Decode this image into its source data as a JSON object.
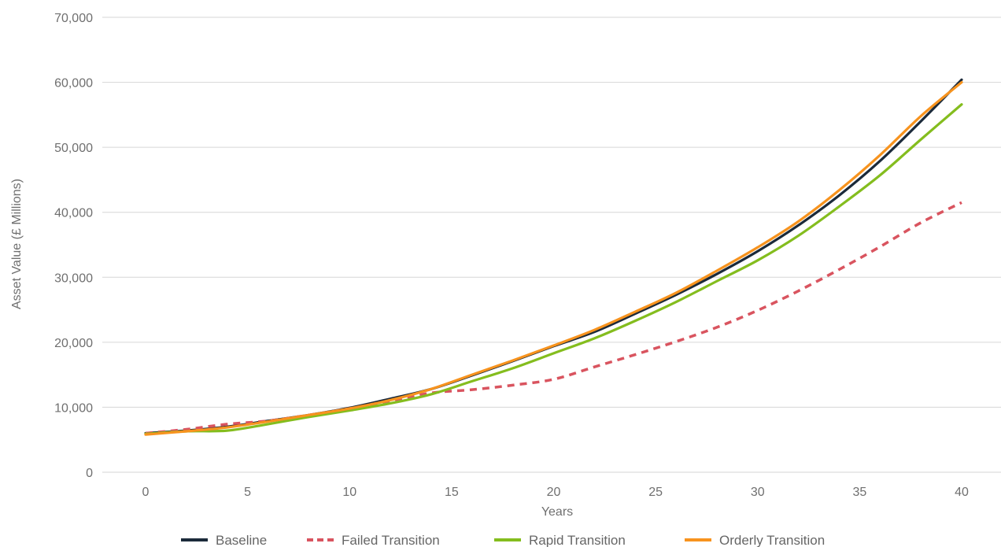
{
  "chart_data": {
    "type": "line",
    "title": "",
    "xlabel": "Years",
    "ylabel": "Asset Value (£ Millions)",
    "xlim": [
      0,
      40
    ],
    "ylim": [
      0,
      70000
    ],
    "x_ticks": [
      "0",
      "5",
      "10",
      "15",
      "20",
      "25",
      "30",
      "35",
      "40"
    ],
    "y_ticks": [
      "0",
      "10,000",
      "20,000",
      "30,000",
      "40,000",
      "50,000",
      "60,000",
      "70,000"
    ],
    "grid": true,
    "legend_position": "bottom",
    "x": [
      0,
      2,
      4,
      6,
      8,
      10,
      12,
      14,
      16,
      18,
      20,
      22,
      24,
      26,
      28,
      30,
      32,
      34,
      36,
      38,
      40
    ],
    "series": [
      {
        "name": "Baseline",
        "color": "#1b2a3a",
        "style": "solid",
        "values": [
          6000,
          6400,
          7000,
          7900,
          8800,
          9900,
          11300,
          12800,
          14900,
          17100,
          19400,
          21600,
          24400,
          27300,
          30500,
          34000,
          38000,
          42600,
          47900,
          54000,
          60400
        ]
      },
      {
        "name": "Failed Transition",
        "color": "#d9545f",
        "style": "dashed",
        "values": [
          6000,
          6600,
          7400,
          7900,
          8800,
          9800,
          11000,
          12200,
          12700,
          13400,
          14300,
          16200,
          18100,
          20100,
          22300,
          24900,
          27900,
          31200,
          34700,
          38400,
          41500
        ]
      },
      {
        "name": "Rapid Transition",
        "color": "#84bd1e",
        "style": "solid",
        "values": [
          5900,
          6300,
          6400,
          7400,
          8500,
          9500,
          10600,
          12000,
          14000,
          16000,
          18300,
          20600,
          23300,
          26200,
          29400,
          32600,
          36400,
          40900,
          45700,
          51200,
          56600
        ]
      },
      {
        "name": "Orderly Transition",
        "color": "#f7931e",
        "style": "solid",
        "values": [
          5800,
          6300,
          6900,
          7800,
          8800,
          9800,
          11100,
          12800,
          15000,
          17200,
          19500,
          21900,
          24700,
          27600,
          31000,
          34600,
          38600,
          43400,
          48800,
          54800,
          60000
        ]
      }
    ]
  }
}
